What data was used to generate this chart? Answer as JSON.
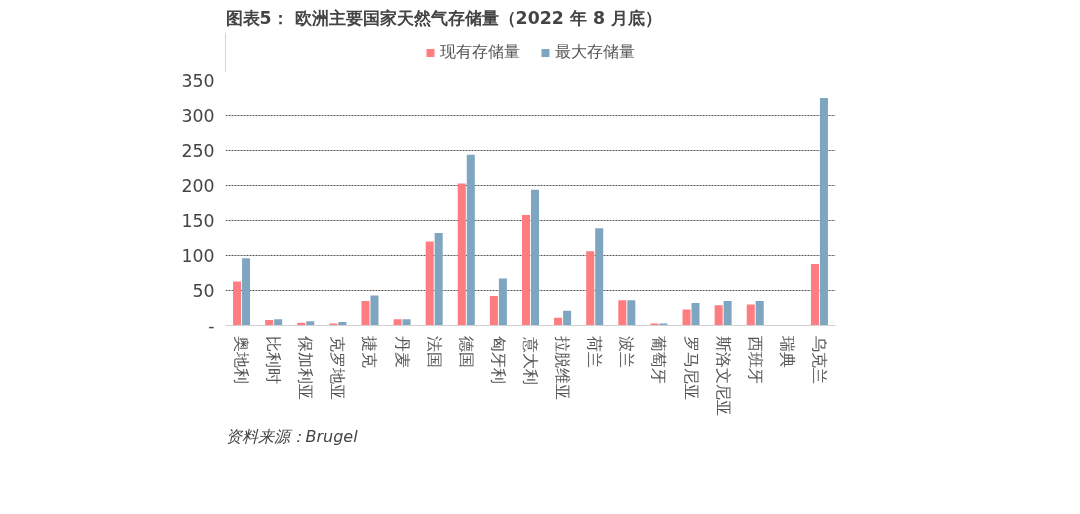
{
  "chart_data": {
    "type": "bar",
    "title": "图表5：  欧洲主要国家天然气存储量（2022 年 8 月底）",
    "categories": [
      "奥地利",
      "比利时",
      "保加利亚",
      "克罗地亚",
      "捷克",
      "丹麦",
      "法国",
      "德国",
      "匈牙利",
      "意大利",
      "拉脱维亚",
      "荷兰",
      "波兰",
      "葡萄牙",
      "罗马尼亚",
      "斯洛文尼亚",
      "西班牙",
      "瑞典",
      "乌克兰"
    ],
    "series": [
      {
        "name": "现有存储量",
        "color": "#ff7c80",
        "values": [
          63,
          8,
          4,
          3,
          35,
          9,
          120,
          203,
          42,
          158,
          11,
          106,
          36,
          3,
          23,
          29,
          30,
          0,
          88
        ]
      },
      {
        "name": "最大存储量",
        "color": "#7fa6c0",
        "values": [
          96,
          9,
          6,
          5,
          43,
          9,
          132,
          244,
          67,
          194,
          21,
          139,
          36,
          3,
          32,
          35,
          35,
          0,
          325
        ]
      }
    ],
    "ylim": [
      0,
      350
    ],
    "yticks": [
      {
        "value": 0,
        "label": "-"
      },
      50,
      100,
      150,
      200,
      250,
      300,
      350
    ],
    "grid": "y",
    "legend": "top",
    "annotations": [
      "资料来源：Brugel"
    ]
  }
}
